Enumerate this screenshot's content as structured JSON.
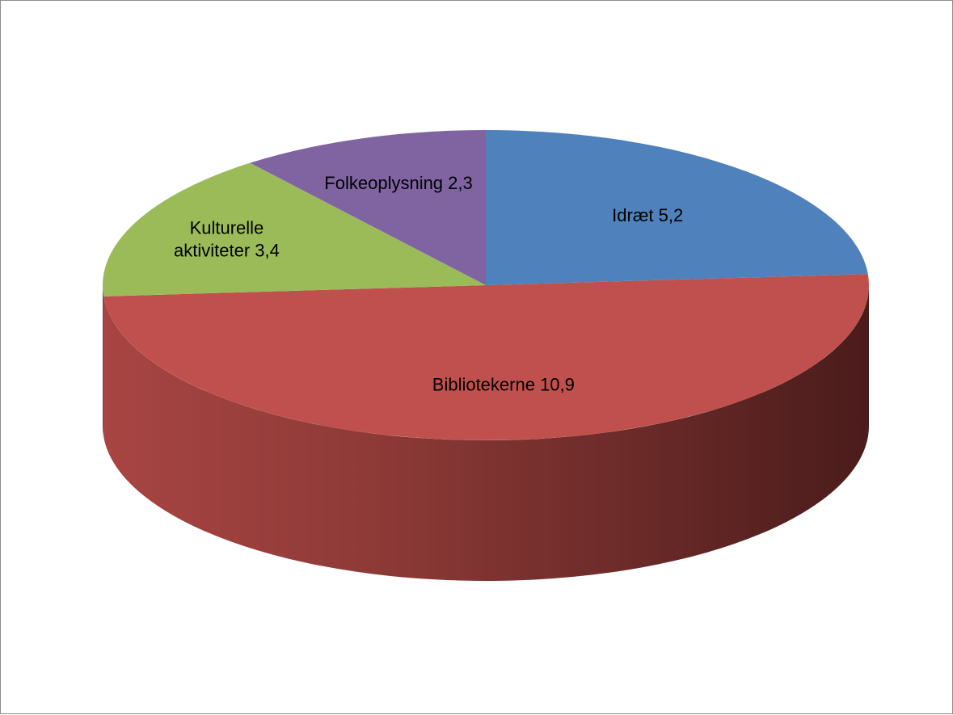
{
  "chart_data": {
    "type": "pie",
    "style": "3d",
    "title": "",
    "legend": "none",
    "slices": [
      {
        "label": "Idræt",
        "value": 5.2,
        "value_label": "5,2",
        "color": "#4f81bd"
      },
      {
        "label": "Bibliotekerne",
        "value": 10.9,
        "value_label": "10,9",
        "color": "#c0504d"
      },
      {
        "label": "Kulturelle aktiviteter",
        "value": 3.4,
        "value_label": "3,4",
        "color": "#9bbb59"
      },
      {
        "label": "Folkeoplysning",
        "value": 2.3,
        "value_label": "2,3",
        "color": "#8064a2"
      }
    ],
    "data_labels": [
      {
        "lines": [
          "Idræt 5,2"
        ]
      },
      {
        "lines": [
          "Bibliotekerne 10,9"
        ]
      },
      {
        "lines": [
          "Kulturelle",
          "aktiviteter 3,4"
        ]
      },
      {
        "lines": [
          "Folkeoplysning 2,3"
        ]
      }
    ]
  }
}
